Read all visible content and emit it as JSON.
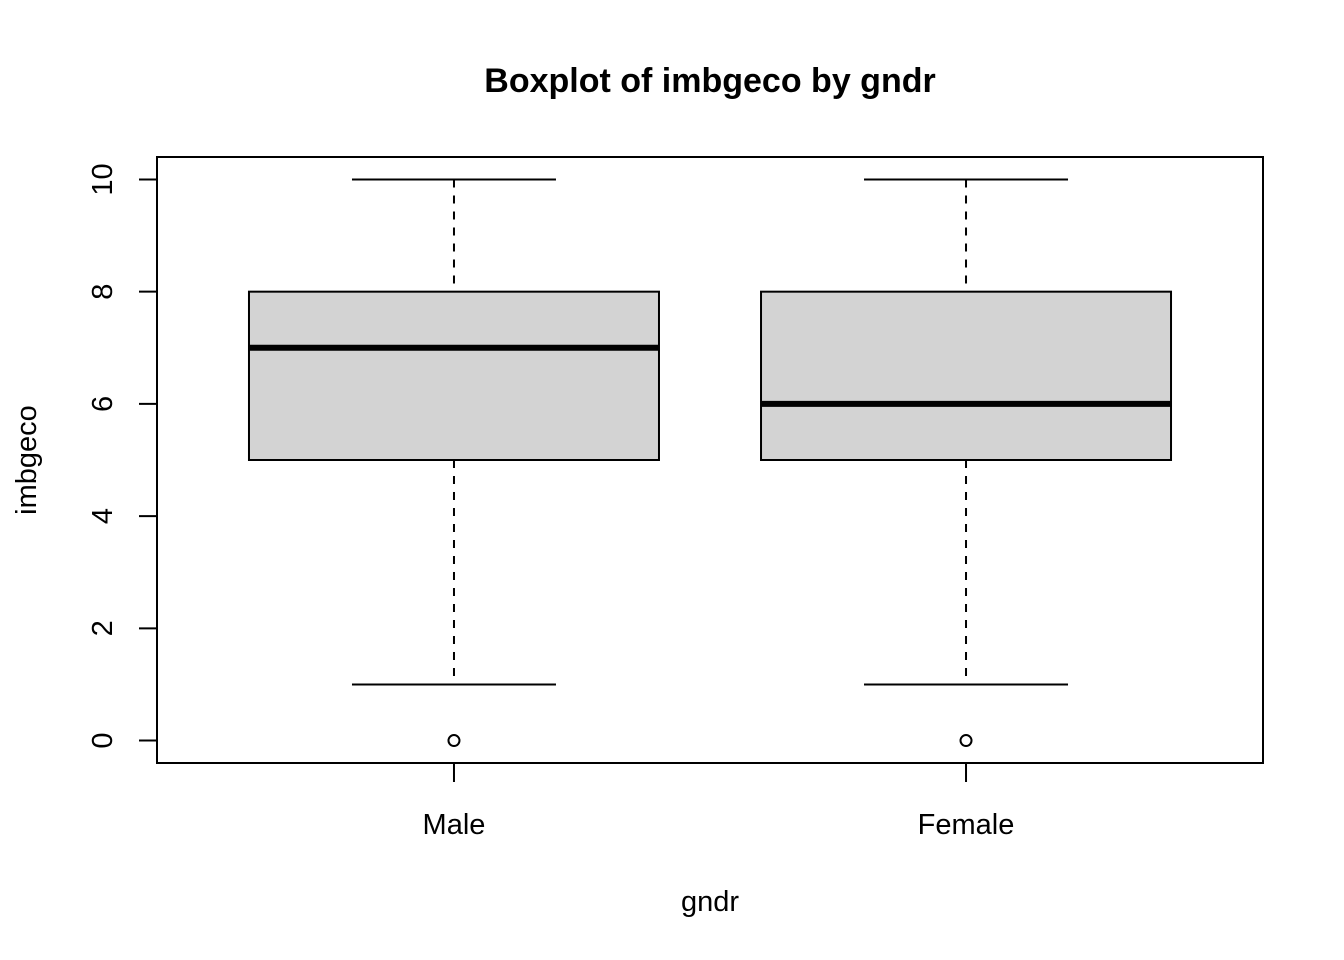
{
  "chart_data": {
    "type": "boxplot",
    "title": "Boxplot of imbgeco by gndr",
    "xlabel": "gndr",
    "ylabel": "imbgeco",
    "categories": [
      "Male",
      "Female"
    ],
    "ylim": [
      -0.4,
      10.4
    ],
    "yticks": [
      0,
      2,
      4,
      6,
      8,
      10
    ],
    "box_fill": "#d3d3d3",
    "line_color": "#000000",
    "boxes": [
      {
        "category": "Male",
        "whisker_low": 1,
        "q1": 5,
        "median": 7,
        "q3": 8,
        "whisker_high": 10,
        "outliers": [
          0
        ]
      },
      {
        "category": "Female",
        "whisker_low": 1,
        "q1": 5,
        "median": 6,
        "q3": 8,
        "whisker_high": 10,
        "outliers": [
          0
        ]
      }
    ]
  }
}
